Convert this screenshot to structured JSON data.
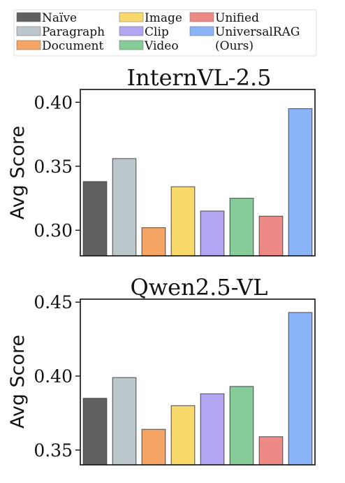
{
  "legend": [
    {
      "label": "Naïve",
      "color": "#606060"
    },
    {
      "label": "Paragraph",
      "color": "#bcc7cc"
    },
    {
      "label": "Document",
      "color": "#f6a564"
    },
    {
      "label": "Image",
      "color": "#f9d96b"
    },
    {
      "label": "Clip",
      "color": "#b3a5f2"
    },
    {
      "label": "Video",
      "color": "#86cc98"
    },
    {
      "label": "Unified",
      "color": "#ee8a86"
    },
    {
      "label": "UniversalRAG\n(Ours)",
      "color": "#8ab4f7"
    }
  ],
  "chart_data": [
    {
      "type": "bar",
      "title": "InternVL-2.5",
      "ylabel": "Avg Score",
      "xlabel": "",
      "categories": [
        "Naïve",
        "Paragraph",
        "Document",
        "Image",
        "Clip",
        "Video",
        "Unified",
        "UniversalRAG (Ours)"
      ],
      "values": [
        0.338,
        0.356,
        0.302,
        0.334,
        0.315,
        0.325,
        0.311,
        0.395
      ],
      "ylim": [
        0.28,
        0.41
      ],
      "yticks": [
        "0.30",
        "0.35",
        "0.40"
      ],
      "grid": false
    },
    {
      "type": "bar",
      "title": "Qwen2.5-VL",
      "ylabel": "Avg Score",
      "xlabel": "",
      "categories": [
        "Naïve",
        "Paragraph",
        "Document",
        "Image",
        "Clip",
        "Video",
        "Unified",
        "UniversalRAG (Ours)"
      ],
      "values": [
        0.385,
        0.399,
        0.364,
        0.38,
        0.388,
        0.393,
        0.359,
        0.443
      ],
      "ylim": [
        0.34,
        0.452
      ],
      "yticks": [
        "0.35",
        "0.40",
        "0.45"
      ],
      "grid": false
    }
  ]
}
